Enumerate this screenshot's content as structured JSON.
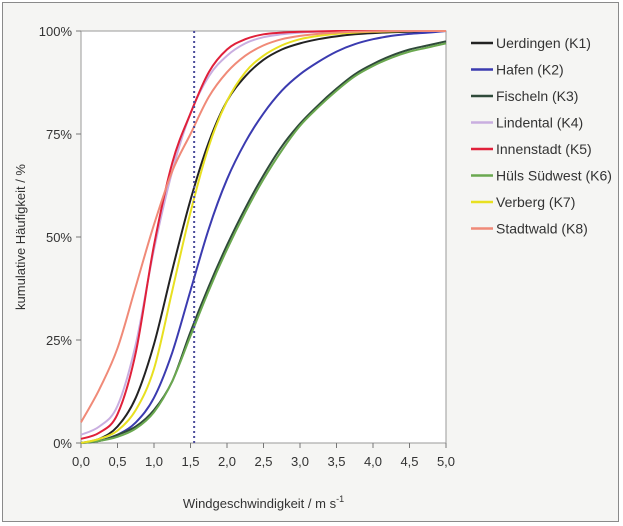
{
  "chart_data": {
    "type": "line",
    "xlabel": "Windgeschwindigkeit / m s",
    "xlabel_sup": "-1",
    "ylabel": "kumulative Häufigkeit / %",
    "xlim": [
      0,
      5
    ],
    "ylim": [
      0,
      100
    ],
    "x_ticks": [
      "0,0",
      "0,5",
      "1,0",
      "1,5",
      "2,0",
      "2,5",
      "3,0",
      "3,5",
      "4,0",
      "4,5",
      "5,0"
    ],
    "y_ticks": [
      "0%",
      "25%",
      "50%",
      "75%",
      "100%"
    ],
    "y_tick_values": [
      0,
      25,
      50,
      75,
      100
    ],
    "grid": false,
    "legend_position": "right",
    "reference_line": {
      "x": 1.55,
      "style": "dotted",
      "color": "#4a4a9a"
    },
    "x": [
      0,
      0.25,
      0.5,
      0.75,
      1.0,
      1.25,
      1.5,
      1.75,
      2.0,
      2.25,
      2.5,
      2.75,
      3.0,
      3.25,
      3.5,
      3.75,
      4.0,
      4.25,
      4.5,
      4.75,
      5.0
    ],
    "series": [
      {
        "name": "Uerdingen (K1)",
        "color": "#222222",
        "values": [
          0,
          1,
          4,
          11,
          24,
          42,
          59,
          73,
          83,
          89,
          93,
          95.5,
          97,
          98,
          98.7,
          99.2,
          99.5,
          99.7,
          99.8,
          99.9,
          100
        ]
      },
      {
        "name": "Hafen (K2)",
        "color": "#3b3bb0",
        "values": [
          0,
          0.5,
          2,
          5,
          11,
          22,
          37,
          52,
          64,
          73,
          80,
          85.5,
          89.5,
          92.5,
          95,
          96.8,
          98,
          98.8,
          99.3,
          99.6,
          100
        ]
      },
      {
        "name": "Fischeln (K3)",
        "color": "#2f4a3a",
        "values": [
          0,
          0.5,
          2,
          4,
          8,
          15,
          27,
          38,
          48,
          57,
          65,
          72,
          77.5,
          82,
          86,
          89.5,
          92,
          94,
          95.5,
          96.5,
          97.5
        ]
      },
      {
        "name": "Lindental (K4)",
        "color": "#c9aee0",
        "values": [
          2,
          4,
          9,
          24,
          47,
          66,
          80,
          89,
          94,
          97,
          98.5,
          99.2,
          99.6,
          99.8,
          99.9,
          100,
          100,
          100,
          100,
          100,
          100
        ]
      },
      {
        "name": "Innenstadt (K5)",
        "color": "#e0203a",
        "values": [
          1,
          2.5,
          7,
          22,
          48,
          68,
          80,
          90,
          95.5,
          98,
          99.2,
          99.6,
          99.8,
          99.9,
          100,
          100,
          100,
          100,
          100,
          100,
          100
        ]
      },
      {
        "name": "Hüls Südwest (K6)",
        "color": "#6aa84f",
        "values": [
          0,
          0.5,
          1.5,
          3.5,
          7.5,
          15,
          26,
          37,
          47,
          56,
          64,
          71,
          77,
          81.5,
          85.5,
          89,
          91.5,
          93.5,
          95,
          96,
          97
        ]
      },
      {
        "name": "Verberg (K7)",
        "color": "#e8e020",
        "values": [
          0,
          1,
          3,
          8,
          18,
          37,
          56,
          72,
          83,
          90,
          94,
          96.5,
          98,
          98.8,
          99.3,
          99.6,
          99.8,
          99.9,
          100,
          100,
          100
        ]
      },
      {
        "name": "Stadtwald (K8)",
        "color": "#f08a78",
        "values": [
          5,
          13,
          23,
          38,
          53,
          66,
          75,
          84,
          90,
          94,
          96.5,
          98,
          98.8,
          99.3,
          99.6,
          99.8,
          99.9,
          100,
          100,
          100,
          100
        ]
      }
    ]
  }
}
